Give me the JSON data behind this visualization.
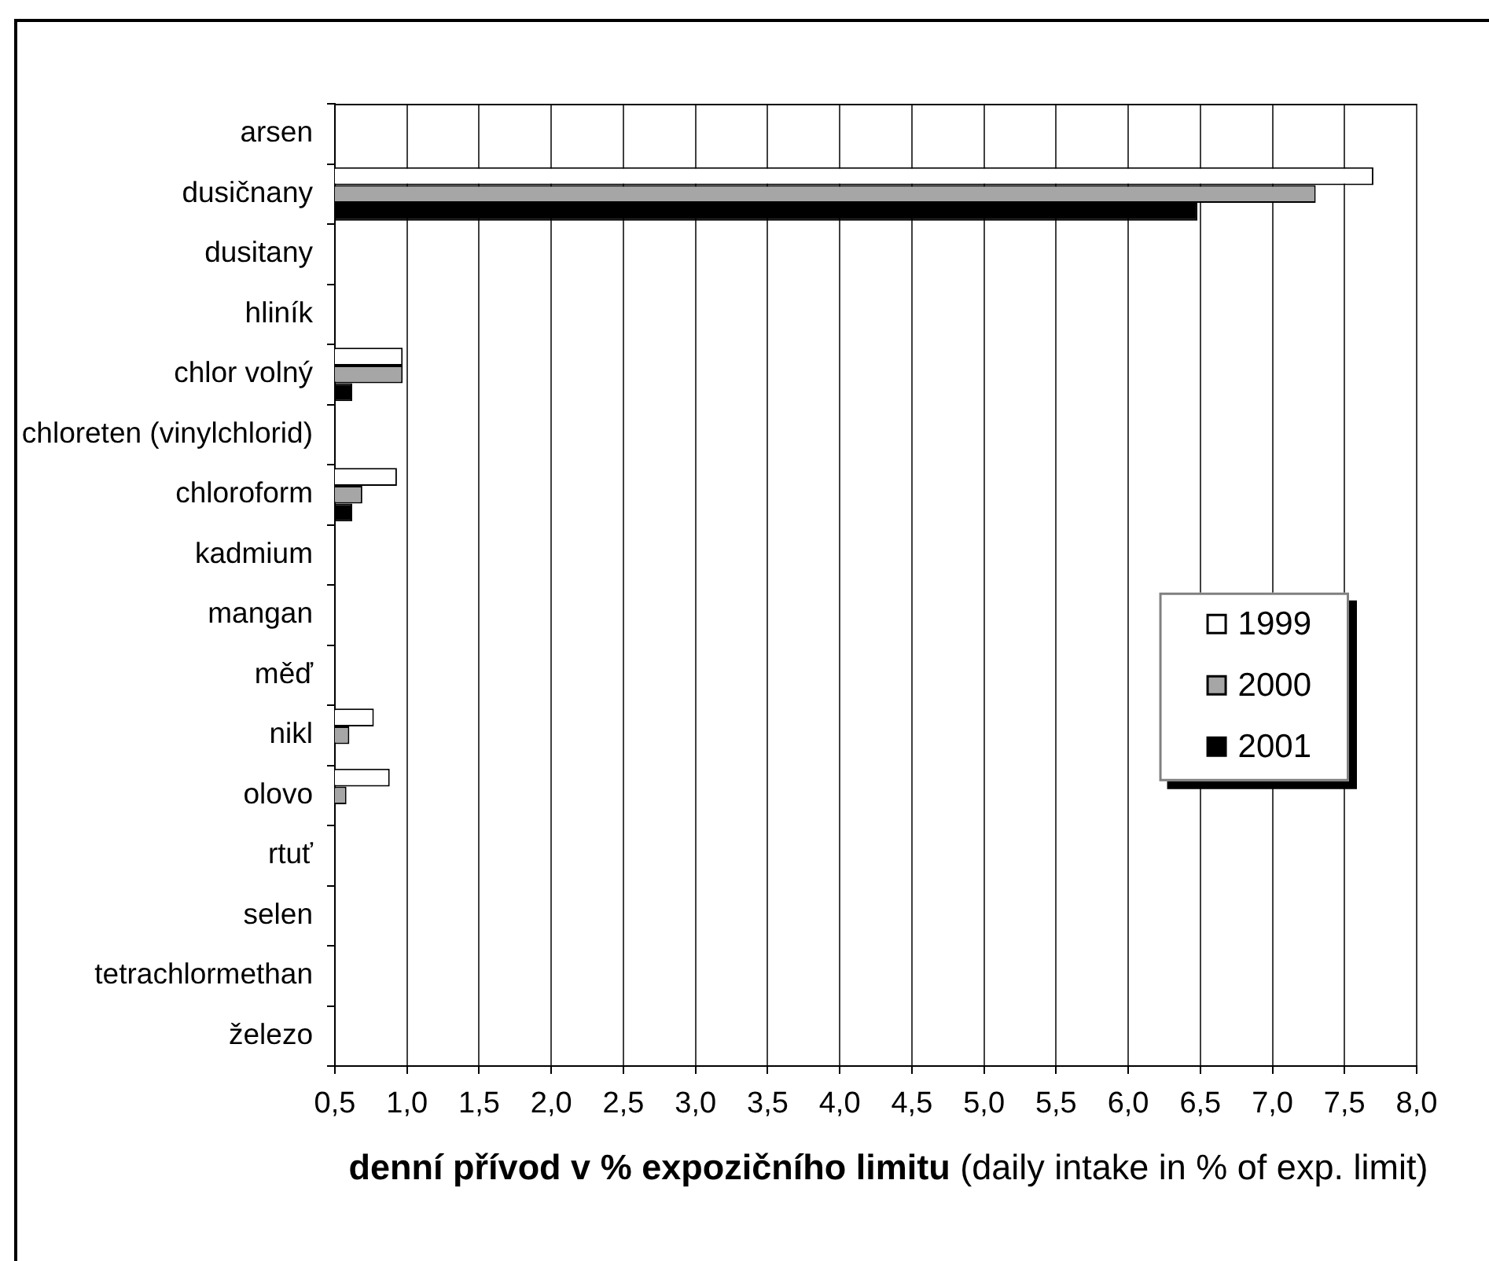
{
  "chart_data": {
    "type": "bar",
    "orientation": "horizontal",
    "categories": [
      "arsen",
      "dusičnany",
      "dusitany",
      "hliník",
      "chlor volný",
      "chloreten (vinylchlorid)",
      "chloroform",
      "kadmium",
      "mangan",
      "měď",
      "nikl",
      "olovo",
      "rtuť",
      "selen",
      "tetrachlormethan",
      "železo"
    ],
    "series": [
      {
        "name": "1999",
        "color": "#ffffff",
        "values": [
          null,
          7.7,
          null,
          null,
          0.97,
          null,
          0.93,
          null,
          null,
          null,
          0.77,
          0.88,
          null,
          null,
          null,
          null
        ]
      },
      {
        "name": "2000",
        "color": "#a6a6a6",
        "values": [
          null,
          7.3,
          null,
          null,
          0.97,
          null,
          0.69,
          null,
          null,
          null,
          0.6,
          0.58,
          null,
          null,
          null,
          null
        ]
      },
      {
        "name": "2001",
        "color": "#000000",
        "values": [
          null,
          6.48,
          null,
          null,
          0.62,
          null,
          0.62,
          null,
          null,
          null,
          null,
          null,
          null,
          null,
          null,
          null
        ]
      }
    ],
    "xlim": [
      0.5,
      8.0
    ],
    "xticks": [
      {
        "value": 0.5,
        "label": "0,5"
      },
      {
        "value": 1.0,
        "label": "1,0"
      },
      {
        "value": 1.5,
        "label": "1,5"
      },
      {
        "value": 2.0,
        "label": "2,0"
      },
      {
        "value": 2.5,
        "label": "2,5"
      },
      {
        "value": 3.0,
        "label": "3,0"
      },
      {
        "value": 3.5,
        "label": "3,5"
      },
      {
        "value": 4.0,
        "label": "4,0"
      },
      {
        "value": 4.5,
        "label": "4,5"
      },
      {
        "value": 5.0,
        "label": "5,0"
      },
      {
        "value": 5.5,
        "label": "5,5"
      },
      {
        "value": 6.0,
        "label": "6,0"
      },
      {
        "value": 6.5,
        "label": "6,5"
      },
      {
        "value": 7.0,
        "label": "7,0"
      },
      {
        "value": 7.5,
        "label": "7,5"
      },
      {
        "value": 8.0,
        "label": "8,0"
      }
    ],
    "xlabel": "denní přívod v % expozičního limitu (daily intake in % of exp. limit)",
    "grid": "x",
    "legend": "right"
  }
}
